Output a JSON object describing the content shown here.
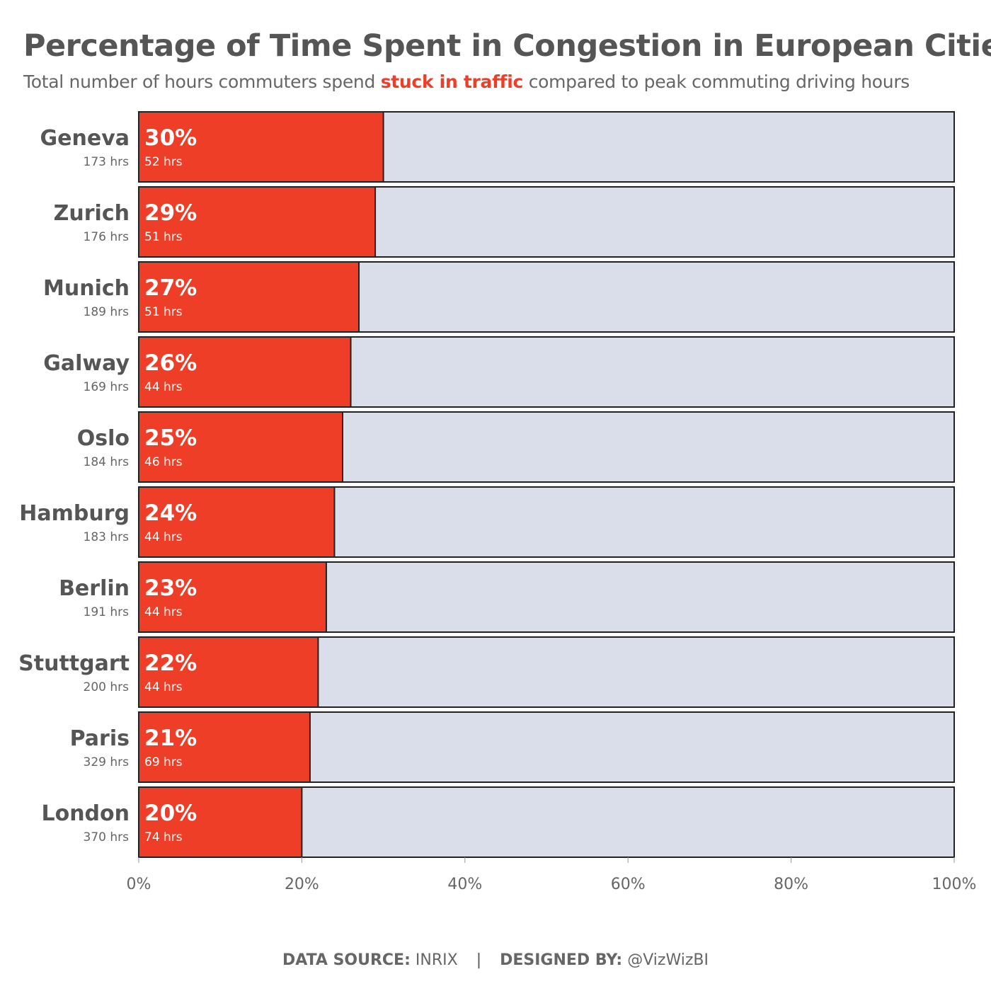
{
  "title": "Percentage of Time Spent in Congestion in European Cities",
  "subtitle": {
    "before": "Total number of hours commuters spend ",
    "highlight": "stuck in traffic",
    "after": " compared to peak commuting driving hours"
  },
  "colors": {
    "accent": "#ee3e27",
    "track": "#d9deea",
    "text": "#555555",
    "outline": "#222222"
  },
  "footer": {
    "source_label": "DATA SOURCE:",
    "source_value": "INRIX",
    "separator": "|",
    "designer_label": "DESIGNED BY:",
    "designer_value": "@VizWizBI"
  },
  "chart_data": {
    "type": "bar",
    "orientation": "horizontal",
    "stacked_to": 100,
    "xlim": [
      0,
      100
    ],
    "x_ticks": [
      0,
      20,
      40,
      60,
      80,
      100
    ],
    "x_tick_labels": [
      "0%",
      "20%",
      "40%",
      "60%",
      "80%",
      "100%"
    ],
    "categories": [
      "Geneva",
      "Zurich",
      "Munich",
      "Galway",
      "Oslo",
      "Hamburg",
      "Berlin",
      "Stuttgart",
      "Paris",
      "London"
    ],
    "category_sublabels": [
      "173 hrs",
      "176 hrs",
      "189 hrs",
      "169 hrs",
      "184 hrs",
      "183 hrs",
      "191 hrs",
      "200 hrs",
      "329 hrs",
      "370 hrs"
    ],
    "values": [
      30,
      29,
      27,
      26,
      25,
      24,
      23,
      22,
      21,
      20
    ],
    "value_labels": [
      "30%",
      "29%",
      "27%",
      "26%",
      "25%",
      "24%",
      "23%",
      "22%",
      "21%",
      "20%"
    ],
    "value_sublabels": [
      "52 hrs",
      "51 hrs",
      "51 hrs",
      "44 hrs",
      "46 hrs",
      "44 hrs",
      "44 hrs",
      "44 hrs",
      "69 hrs",
      "74 hrs"
    ],
    "grid": false,
    "legend": "none"
  }
}
